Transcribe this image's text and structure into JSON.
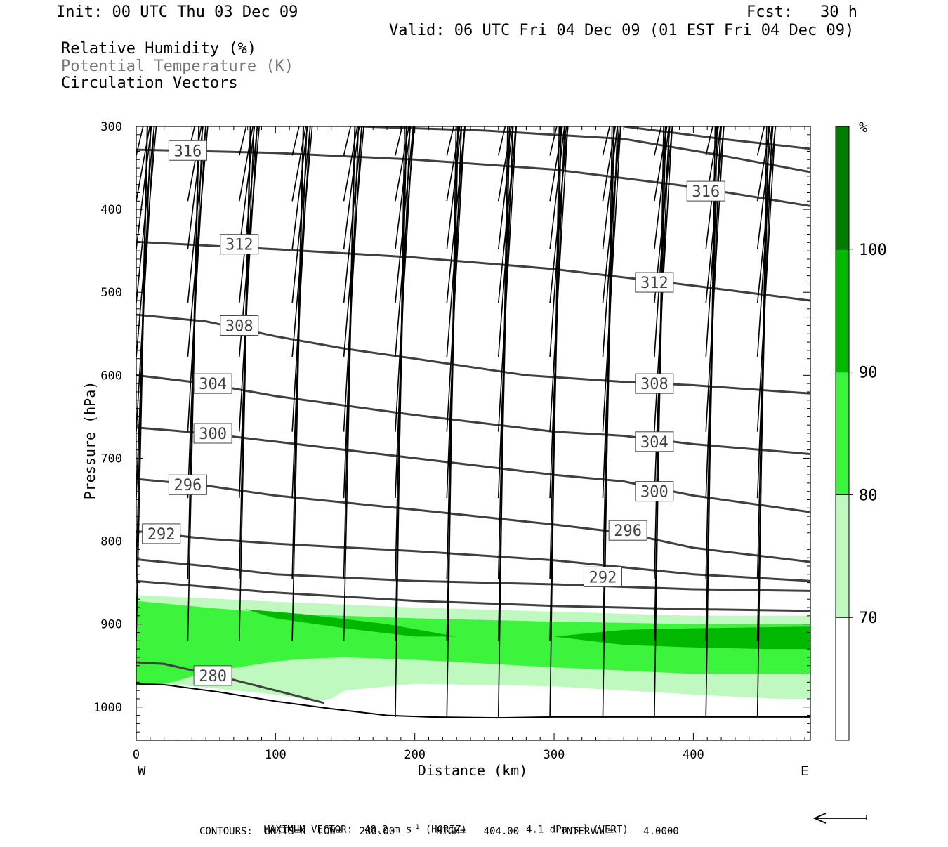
{
  "header": {
    "init": "Init: 00 UTC Thu 03 Dec 09",
    "fcst_label": "Fcst:",
    "fcst_value": "30 h",
    "valid": "Valid: 06 UTC Fri 04 Dec 09 (01 EST Fri 04 Dec 09)",
    "fields": [
      "Relative Humidity (%)",
      "Potential Temperature (K)",
      "Circulation Vectors"
    ]
  },
  "colors": {
    "rh_70_80": "#bff9bf",
    "rh_80_90": "#3cf43c",
    "rh_90_100": "#00b800",
    "rh_100_plus": "#007d00",
    "theta_line": "#404040",
    "terrain": "#000000"
  },
  "chart_data": {
    "type": "cross-section",
    "xlabel": "Distance (km)",
    "ylabel": "Pressure (hPa)",
    "xlim": [
      0,
      484
    ],
    "ylim": [
      1040,
      300
    ],
    "x_ticks": [
      0,
      100,
      200,
      300,
      400
    ],
    "y_ticks": [
      300,
      400,
      500,
      600,
      700,
      800,
      900,
      1000
    ],
    "x_end_labels": {
      "left": "W",
      "right": "E"
    },
    "grid": false,
    "colorbar": {
      "unit": "%",
      "levels": [
        70,
        80,
        90,
        100
      ],
      "colors": [
        "#ffffff",
        "#bff9bf",
        "#3cf43c",
        "#00b800",
        "#007d00"
      ],
      "range": [
        60,
        110
      ]
    },
    "terrain": {
      "x": [
        0,
        20,
        60,
        100,
        140,
        180,
        210,
        260,
        300,
        400,
        484
      ],
      "p": [
        972,
        973,
        982,
        993,
        1002,
        1010,
        1012,
        1013,
        1012,
        1012,
        1012
      ]
    },
    "theta_contours": [
      {
        "level": 280,
        "label": "280",
        "x": [
          0,
          20,
          60,
          100,
          135
        ],
        "p": [
          946,
          948,
          963,
          980,
          995
        ],
        "labels_at": [
          [
            55,
            962
          ]
        ]
      },
      {
        "level": 284,
        "label": "",
        "x": [
          0,
          50,
          100,
          200,
          300,
          400,
          484
        ],
        "p": [
          848,
          855,
          862,
          872,
          878,
          882,
          884
        ],
        "labels_at": []
      },
      {
        "level": 288,
        "label": "",
        "x": [
          0,
          50,
          100,
          200,
          300,
          400,
          484
        ],
        "p": [
          822,
          830,
          840,
          848,
          852,
          858,
          860
        ],
        "labels_at": []
      },
      {
        "level": 292,
        "label": "292",
        "x": [
          0,
          50,
          100,
          200,
          300,
          400,
          484
        ],
        "p": [
          788,
          797,
          803,
          812,
          823,
          840,
          848
        ],
        "labels_at": [
          [
            18,
            791
          ],
          [
            335,
            843
          ]
        ]
      },
      {
        "level": 296,
        "label": "296",
        "x": [
          0,
          50,
          100,
          200,
          300,
          350,
          400,
          484
        ],
        "p": [
          725,
          733,
          745,
          762,
          780,
          790,
          808,
          825
        ],
        "labels_at": [
          [
            37,
            732
          ],
          [
            353,
            787
          ]
        ]
      },
      {
        "level": 300,
        "label": "300",
        "x": [
          0,
          50,
          100,
          200,
          300,
          350,
          400,
          484
        ],
        "p": [
          663,
          670,
          680,
          700,
          720,
          728,
          745,
          765
        ],
        "labels_at": [
          [
            55,
            670
          ],
          [
            372,
            740
          ]
        ]
      },
      {
        "level": 304,
        "label": "304",
        "x": [
          0,
          50,
          100,
          200,
          300,
          350,
          400,
          484
        ],
        "p": [
          600,
          610,
          625,
          648,
          668,
          673,
          683,
          695
        ],
        "labels_at": [
          [
            55,
            610
          ],
          [
            372,
            680
          ]
        ]
      },
      {
        "level": 308,
        "label": "308",
        "x": [
          0,
          50,
          100,
          150,
          200,
          280,
          350,
          400,
          484
        ],
        "p": [
          527,
          535,
          553,
          568,
          580,
          600,
          608,
          612,
          622
        ],
        "labels_at": [
          [
            74,
            540
          ],
          [
            372,
            610
          ]
        ]
      },
      {
        "level": 312,
        "label": "312",
        "x": [
          0,
          100,
          200,
          300,
          400,
          484
        ],
        "p": [
          439,
          448,
          458,
          472,
          492,
          510
        ],
        "labels_at": [
          [
            74,
            442
          ],
          [
            372,
            488
          ]
        ]
      },
      {
        "level": 316,
        "label": "316",
        "x": [
          0,
          100,
          200,
          300,
          400,
          484
        ],
        "p": [
          328,
          332,
          340,
          352,
          373,
          396
        ],
        "labels_at": [
          [
            37,
            329
          ],
          [
            409,
            378
          ]
        ]
      },
      {
        "level": 320,
        "label": "",
        "x": [
          160,
          250,
          350,
          420,
          484
        ],
        "p": [
          300,
          305,
          315,
          335,
          355
        ],
        "labels_at": []
      },
      {
        "level": 324,
        "label": "",
        "x": [
          350,
          420,
          484
        ],
        "p": [
          300,
          315,
          327
        ],
        "labels_at": []
      }
    ],
    "rh_regions": [
      {
        "band": "70-80",
        "x": [
          0,
          100,
          200,
          300,
          400,
          484,
          484,
          460,
          400,
          300,
          200,
          150,
          140,
          130,
          100,
          60,
          20,
          0
        ],
        "p": [
          865,
          873,
          880,
          885,
          890,
          890,
          990,
          990,
          985,
          975,
          972,
          980,
          990,
          993,
          985,
          978,
          972,
          972
        ]
      },
      {
        "band": "80-90",
        "x": [
          0,
          50,
          100,
          200,
          300,
          400,
          484,
          484,
          400,
          300,
          200,
          150,
          120,
          100,
          50,
          30,
          20,
          0
        ],
        "p": [
          872,
          880,
          887,
          893,
          897,
          900,
          900,
          960,
          960,
          952,
          943,
          940,
          942,
          945,
          958,
          968,
          972,
          972
        ]
      },
      {
        "band": "90-100",
        "x": [
          78,
          120,
          180,
          230,
          200,
          150,
          100,
          78
        ],
        "p": [
          882,
          888,
          900,
          915,
          915,
          905,
          893,
          882
        ]
      },
      {
        "band": "90-100",
        "x": [
          300,
          350,
          400,
          484,
          484,
          450,
          400,
          350,
          300
        ],
        "p": [
          915,
          907,
          905,
          903,
          930,
          930,
          928,
          925,
          915
        ]
      }
    ],
    "vector_grid": {
      "x_rows": [
        0,
        37,
        74,
        112,
        149,
        186,
        223,
        260,
        297,
        335,
        372,
        409,
        446
      ],
      "rows": [
        {
          "p": 335,
          "u": [
            26,
            26,
            26,
            26,
            26,
            26,
            26,
            26,
            26,
            26,
            26,
            26,
            26
          ],
          "w": [
            0,
            0,
            0,
            0,
            -1,
            -1,
            -1,
            -1,
            0,
            0,
            0,
            0,
            0
          ]
        },
        {
          "p": 390,
          "u": [
            26,
            26,
            26,
            26,
            26,
            26,
            25,
            25,
            24,
            24,
            24,
            24,
            24
          ],
          "w": [
            1,
            1,
            1,
            1,
            1,
            0,
            0,
            0,
            0,
            0,
            0,
            0,
            0
          ]
        },
        {
          "p": 448,
          "u": [
            22,
            22,
            22,
            22,
            22,
            22,
            21,
            21,
            21,
            21,
            21,
            21,
            21
          ],
          "w": [
            0,
            0,
            1,
            1,
            1,
            1,
            1,
            1,
            1,
            1,
            1,
            1,
            1
          ]
        },
        {
          "p": 513,
          "u": [
            22,
            22,
            22,
            22,
            22,
            22,
            22,
            22,
            22,
            22,
            22,
            22,
            22
          ],
          "w": [
            0,
            0,
            1,
            1,
            1,
            1,
            1,
            1,
            1,
            1,
            1,
            1,
            1
          ]
        },
        {
          "p": 578,
          "u": [
            22,
            22,
            22,
            22,
            22,
            21,
            20,
            19,
            18,
            18,
            17,
            17,
            17
          ],
          "w": [
            0,
            0,
            1,
            1,
            1,
            1,
            1,
            1,
            1,
            1,
            1,
            1,
            1
          ]
        },
        {
          "p": 668,
          "u": [
            18,
            18,
            18,
            18,
            18,
            18,
            18,
            18,
            18,
            18,
            18,
            18,
            18
          ],
          "w": [
            -1,
            -1,
            0,
            1,
            1,
            1,
            1,
            1,
            1,
            1,
            1,
            1,
            1
          ]
        },
        {
          "p": 748,
          "u": [
            14,
            14,
            14,
            14,
            14,
            14,
            14,
            14,
            14,
            14,
            14,
            14,
            14
          ],
          "w": [
            0,
            0,
            0,
            1,
            1,
            2,
            2,
            2,
            2,
            1,
            1,
            1,
            1
          ]
        },
        {
          "p": 846,
          "u": [
            10,
            10,
            10,
            10,
            10,
            10,
            10,
            10,
            10,
            10,
            10,
            10,
            10
          ],
          "w": [
            1,
            1,
            1,
            1,
            1,
            1,
            1,
            1,
            1,
            1,
            1,
            1,
            1
          ]
        },
        {
          "p": 920,
          "u": [
            10,
            10,
            10,
            10,
            10,
            10,
            10,
            10,
            10,
            10,
            10,
            10,
            10
          ],
          "w": [
            0,
            1,
            1,
            1,
            1,
            1,
            1,
            1,
            1,
            0,
            0,
            0,
            0
          ]
        },
        {
          "p": 1012,
          "u": [
            0,
            0,
            0,
            0,
            0,
            8,
            8,
            8,
            8,
            8,
            8,
            8,
            8
          ],
          "w": [
            0,
            0,
            0,
            0,
            0,
            0,
            0,
            0,
            0,
            0,
            0,
            0,
            0
          ]
        }
      ]
    }
  },
  "footer": {
    "max_vector_label": "MAXIMUM VECTOR:",
    "horiz_value": "48.2 m s",
    "horiz_unit_suffix": "(HORIZ)",
    "vert_value": "4.1 dPa s",
    "vert_unit_suffix": "(VERT)",
    "exponent": "-1",
    "contours_line": "CONTOURS:  UNITS=K  LOW=   280.00       HIGH=   404.00       INTERVAL=     4.0000"
  }
}
